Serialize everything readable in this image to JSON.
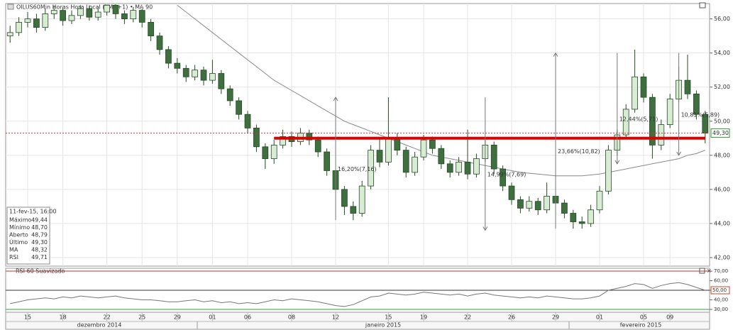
{
  "chart_data": {
    "type": "candlestick",
    "title": "OILUS60Min Horas Hora Local (TMG+1) • MA 90",
    "categories": [
      null,
      null,
      "15",
      null,
      null,
      null,
      "18",
      null,
      null,
      null,
      null,
      "22",
      null,
      null,
      null,
      "25",
      null,
      null,
      null,
      "29",
      null,
      null,
      null,
      "01",
      null,
      null,
      null,
      "06",
      null,
      null,
      null,
      null,
      "08",
      null,
      null,
      null,
      null,
      "12",
      null,
      null,
      null,
      null,
      null,
      "15",
      null,
      null,
      null,
      "19",
      null,
      null,
      null,
      null,
      "22",
      null,
      null,
      null,
      null,
      "26",
      null,
      null,
      null,
      null,
      "29",
      null,
      null,
      null,
      null,
      "01",
      null,
      null,
      null,
      null,
      "05",
      null,
      null,
      "09",
      null,
      null,
      null,
      null
    ],
    "month_labels": [
      "dezembro 2014",
      "janeiro 2015",
      "fevereiro 2015"
    ],
    "open": [
      55.0,
      55.2,
      55.8,
      56.0,
      55.5,
      56.3,
      56.5,
      55.9,
      56.2,
      56.6,
      56.1,
      56.4,
      56.8,
      56.3,
      56.0,
      56.5,
      55.8,
      55.0,
      54.2,
      53.4,
      53.1,
      52.6,
      53.0,
      52.4,
      52.8,
      51.9,
      51.2,
      50.4,
      49.6,
      48.5,
      47.8,
      48.6,
      49.1,
      48.8,
      49.3,
      48.9,
      48.2,
      47.1,
      46.0,
      45.0,
      44.6,
      46.2,
      48.3,
      47.6,
      49.0,
      48.3,
      47.0,
      47.9,
      48.9,
      48.4,
      47.5,
      47.0,
      47.6,
      46.9,
      47.8,
      48.6,
      47.2,
      46.2,
      45.4,
      44.9,
      45.3,
      44.8,
      45.6,
      45.2,
      44.6,
      44.1,
      44.0,
      44.8,
      45.9,
      48.3,
      49.2,
      50.7,
      52.6,
      51.4,
      48.6,
      49.8,
      51.3,
      52.4,
      51.6,
      50.4
    ],
    "high": [
      55.6,
      56.1,
      56.4,
      56.3,
      56.6,
      56.8,
      56.7,
      56.5,
      56.8,
      56.8,
      56.7,
      56.8,
      56.8,
      56.5,
      56.7,
      56.6,
      56.0,
      55.2,
      54.4,
      53.7,
      53.3,
      53.3,
      53.2,
      53.6,
      53.0,
      52.1,
      51.4,
      50.6,
      49.8,
      48.7,
      48.9,
      49.5,
      49.4,
      49.6,
      49.5,
      49.1,
      48.4,
      47.3,
      46.2,
      45.3,
      46.5,
      48.6,
      49.0,
      51.4,
      49.3,
      48.5,
      48.2,
      49.2,
      49.1,
      48.6,
      47.7,
      47.9,
      49.5,
      48.1,
      48.9,
      48.8,
      47.4,
      46.4,
      45.6,
      45.6,
      45.5,
      46.4,
      45.8,
      45.4,
      44.8,
      44.4,
      45.1,
      46.2,
      48.6,
      49.5,
      51.0,
      54.2,
      52.8,
      51.6,
      50.1,
      51.6,
      53.2,
      53.9,
      51.8,
      50.6
    ],
    "low": [
      54.6,
      55.0,
      55.5,
      55.2,
      55.3,
      56.0,
      55.6,
      55.7,
      56.0,
      55.9,
      55.9,
      56.2,
      56.0,
      55.7,
      55.8,
      55.5,
      54.7,
      53.9,
      53.1,
      52.8,
      52.3,
      52.4,
      52.1,
      52.2,
      51.6,
      50.9,
      50.1,
      49.3,
      48.2,
      47.2,
      47.5,
      48.4,
      48.5,
      48.6,
      48.6,
      47.9,
      46.8,
      45.7,
      44.5,
      44.2,
      44.4,
      46.0,
      47.3,
      47.4,
      48.0,
      46.7,
      46.8,
      47.7,
      48.1,
      47.2,
      46.7,
      46.8,
      46.6,
      46.7,
      47.6,
      46.9,
      45.9,
      45.1,
      44.6,
      44.7,
      44.5,
      44.6,
      44.9,
      44.3,
      43.7,
      43.7,
      43.8,
      44.6,
      45.7,
      48.0,
      49.0,
      50.5,
      51.1,
      47.8,
      48.3,
      49.6,
      51.1,
      51.3,
      50.1,
      48.7
    ],
    "close": [
      55.2,
      55.8,
      56.0,
      55.5,
      56.3,
      56.5,
      55.9,
      56.2,
      56.6,
      56.1,
      56.4,
      56.8,
      56.3,
      56.0,
      56.5,
      55.8,
      55.0,
      54.2,
      53.4,
      53.1,
      52.6,
      53.0,
      52.4,
      52.8,
      51.9,
      51.2,
      50.4,
      49.6,
      48.5,
      47.8,
      48.6,
      49.1,
      48.8,
      49.3,
      48.9,
      48.2,
      47.1,
      46.0,
      45.0,
      44.6,
      46.2,
      48.3,
      47.6,
      49.0,
      48.3,
      47.0,
      47.9,
      48.9,
      48.4,
      47.5,
      47.0,
      47.6,
      46.9,
      47.8,
      48.6,
      47.2,
      46.2,
      45.4,
      44.9,
      45.3,
      44.8,
      45.6,
      45.2,
      44.6,
      44.1,
      44.0,
      44.8,
      45.9,
      48.3,
      49.2,
      50.7,
      52.6,
      51.4,
      48.6,
      49.8,
      51.3,
      52.4,
      51.6,
      50.4,
      49.3
    ],
    "up_color": "#d8ecd4",
    "down_color": "#3f6f3f",
    "edge_color": "#244a24",
    "ma": {
      "name": "MA 90",
      "color": "#8a8a8a",
      "values": [
        null,
        null,
        null,
        null,
        null,
        null,
        null,
        null,
        null,
        null,
        null,
        null,
        null,
        null,
        null,
        null,
        null,
        null,
        null,
        56.8,
        56.4,
        56.0,
        55.6,
        55.2,
        54.8,
        54.4,
        54.0,
        53.6,
        53.2,
        52.8,
        52.4,
        52.1,
        51.8,
        51.5,
        51.2,
        50.9,
        50.6,
        50.3,
        50.0,
        49.8,
        49.6,
        49.4,
        49.2,
        49.0,
        48.8,
        48.6,
        48.4,
        48.2,
        48.0,
        47.9,
        47.8,
        47.7,
        47.6,
        47.5,
        47.4,
        47.3,
        47.2,
        47.1,
        47.0,
        46.95,
        46.9,
        46.85,
        46.8,
        46.8,
        46.8,
        46.8,
        46.85,
        46.9,
        47.0,
        47.1,
        47.2,
        47.3,
        47.4,
        47.5,
        47.6,
        47.7,
        47.8,
        48.0,
        48.1,
        48.3
      ]
    },
    "ylim": [
      41.5,
      56.9
    ],
    "yticks": [
      {
        "value": 42,
        "label": "42,00"
      },
      {
        "value": 44,
        "label": "44,00"
      },
      {
        "value": 46,
        "label": "46,00"
      },
      {
        "value": 48,
        "label": "48,00"
      },
      {
        "value": 50,
        "label": "50,00"
      },
      {
        "value": 52,
        "label": "52,00"
      },
      {
        "value": 54,
        "label": "54,00"
      },
      {
        "value": 56,
        "label": "56,00"
      }
    ],
    "grid": true,
    "current": {
      "value": 49.3,
      "label": "49,30",
      "color": "#2a9d2a"
    },
    "support": {
      "value": 49.0,
      "from": 30,
      "to": 79,
      "color": "#e00000"
    },
    "annotations": [
      {
        "text": "16,20%(7,16)",
        "at": 37,
        "from": 44.2,
        "to": 51.4
      },
      {
        "text": "14,99%(7,69)",
        "at": 54,
        "from": 51.4,
        "to": 43.6
      },
      {
        "text": "23,66%(10,82)",
        "at": 62,
        "from": 43.7,
        "to": 54.0
      },
      {
        "text": "12,44%(5,71)",
        "at": 69,
        "from": 54.0,
        "to": 47.5
      },
      {
        "text": "10,81%(5,89)",
        "at": 76,
        "from": 54.0,
        "to": 48.0
      }
    ],
    "info": {
      "date": "11-fev-15, 16:00",
      "rows": [
        [
          "Máximo",
          "49,44"
        ],
        [
          "Mínimo",
          "48,70"
        ],
        [
          "Aberto",
          "48,79"
        ],
        [
          "Último",
          "49,30"
        ],
        [
          "MA",
          "48,32"
        ],
        [
          "RSI",
          "49,71"
        ]
      ]
    },
    "rsi": {
      "title": "RSI 60 Suavizado",
      "color": "#777777",
      "values": [
        36,
        38,
        40,
        41,
        42,
        41,
        43,
        42,
        44,
        43,
        42,
        43,
        44,
        42,
        41,
        40,
        40,
        39,
        38,
        38,
        39,
        40,
        38,
        39,
        37,
        38,
        36,
        37,
        36,
        38,
        40,
        39,
        41,
        40,
        39,
        38,
        36,
        34,
        33,
        35,
        39,
        43,
        44,
        47,
        46,
        45,
        46,
        48,
        47,
        46,
        45,
        46,
        44,
        46,
        47,
        45,
        44,
        43,
        42,
        43,
        42,
        44,
        43,
        42,
        41,
        41,
        42,
        44,
        50,
        52,
        54,
        57,
        56,
        52,
        55,
        57,
        58,
        56,
        53,
        50
      ],
      "ylim": [
        27,
        73
      ],
      "yticks": [
        {
          "value": 30,
          "label": "30,00"
        },
        {
          "value": 40,
          "label": "40,00"
        },
        {
          "value": 50,
          "label": "50,00"
        },
        {
          "value": 60,
          "label": "60,00"
        },
        {
          "value": 70,
          "label": "70,00"
        }
      ],
      "levels": [
        {
          "value": 70,
          "color": "#c03030"
        },
        {
          "value": 50,
          "color": "#333333"
        },
        {
          "value": 30,
          "color": "#30a030"
        }
      ],
      "current": {
        "value": 50,
        "label": "50,00",
        "color": "#d04020"
      }
    }
  }
}
